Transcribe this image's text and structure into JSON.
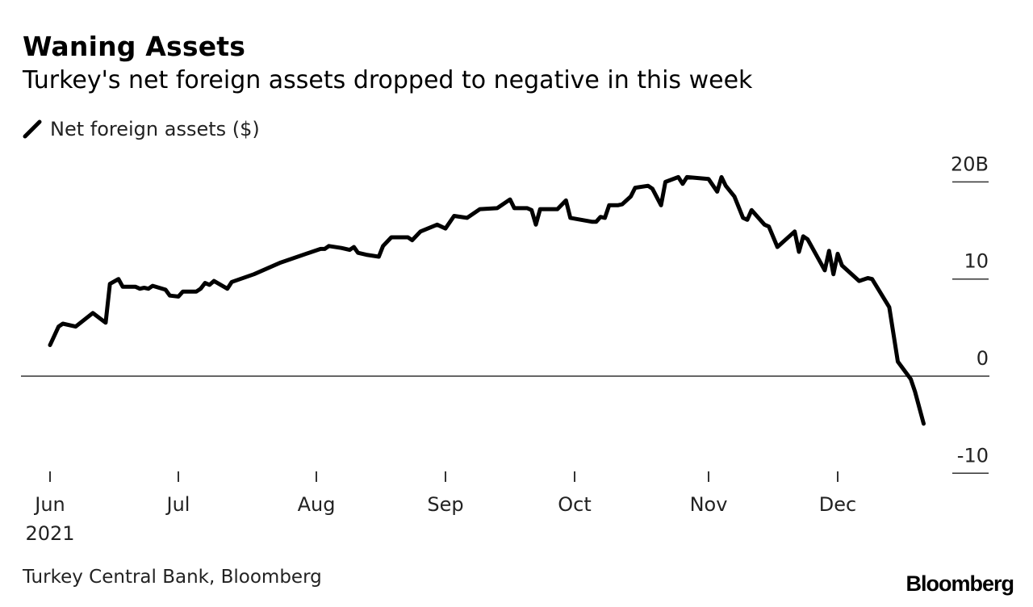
{
  "title": "Waning Assets",
  "subtitle": "Turkey's net foreign assets dropped to negative in this week",
  "source": "Turkey Central Bank, Bloomberg",
  "logo": "Bloomberg",
  "chart_data": {
    "type": "line",
    "title": "Waning Assets",
    "subtitle": "Turkey's net foreign assets dropped to negative in this week",
    "legend": "top-left",
    "grid": false,
    "line_color": "#000000",
    "xlim": [
      "2021-06-01",
      "2021-12-21"
    ],
    "ylim": [
      -10,
      20
    ],
    "x_ticks": [
      {
        "date": "2021-06-01",
        "label": "Jun",
        "sublabel": "2021"
      },
      {
        "date": "2021-07-01",
        "label": "Jul"
      },
      {
        "date": "2021-08-01",
        "label": "Aug"
      },
      {
        "date": "2021-09-01",
        "label": "Sep"
      },
      {
        "date": "2021-10-01",
        "label": "Oct"
      },
      {
        "date": "2021-11-01",
        "label": "Nov"
      },
      {
        "date": "2021-12-01",
        "label": "Dec"
      }
    ],
    "y_ticks": [
      {
        "value": 20,
        "label": "20B"
      },
      {
        "value": 10,
        "label": "10"
      },
      {
        "value": 0,
        "label": "0"
      },
      {
        "value": -10,
        "label": "-10"
      }
    ],
    "series": [
      {
        "name": "Net foreign assets ($)",
        "points": [
          [
            "2021-06-01",
            3.2
          ],
          [
            "2021-06-03",
            5.1
          ],
          [
            "2021-06-04",
            5.4
          ],
          [
            "2021-06-07",
            5.1
          ],
          [
            "2021-06-11",
            6.5
          ],
          [
            "2021-06-14",
            5.5
          ],
          [
            "2021-06-15",
            9.5
          ],
          [
            "2021-06-17",
            10.0
          ],
          [
            "2021-06-18",
            9.2
          ],
          [
            "2021-06-21",
            9.2
          ],
          [
            "2021-06-22",
            9.0
          ],
          [
            "2021-06-23",
            9.1
          ],
          [
            "2021-06-24",
            9.0
          ],
          [
            "2021-06-25",
            9.3
          ],
          [
            "2021-06-28",
            8.9
          ],
          [
            "2021-06-29",
            8.3
          ],
          [
            "2021-07-01",
            8.2
          ],
          [
            "2021-07-02",
            8.7
          ],
          [
            "2021-07-05",
            8.7
          ],
          [
            "2021-07-06",
            9.0
          ],
          [
            "2021-07-07",
            9.6
          ],
          [
            "2021-07-08",
            9.4
          ],
          [
            "2021-07-09",
            9.8
          ],
          [
            "2021-07-12",
            9.0
          ],
          [
            "2021-07-13",
            9.7
          ],
          [
            "2021-07-18",
            10.5
          ],
          [
            "2021-07-24",
            11.7
          ],
          [
            "2021-07-31",
            12.8
          ],
          [
            "2021-08-02",
            13.1
          ],
          [
            "2021-08-03",
            13.1
          ],
          [
            "2021-08-04",
            13.4
          ],
          [
            "2021-08-07",
            13.2
          ],
          [
            "2021-08-09",
            13.0
          ],
          [
            "2021-08-10",
            13.3
          ],
          [
            "2021-08-11",
            12.7
          ],
          [
            "2021-08-13",
            12.5
          ],
          [
            "2021-08-16",
            12.3
          ],
          [
            "2021-08-17",
            13.4
          ],
          [
            "2021-08-19",
            14.3
          ],
          [
            "2021-08-23",
            14.3
          ],
          [
            "2021-08-24",
            14.0
          ],
          [
            "2021-08-26",
            14.9
          ],
          [
            "2021-08-30",
            15.6
          ],
          [
            "2021-09-01",
            15.2
          ],
          [
            "2021-09-03",
            16.5
          ],
          [
            "2021-09-06",
            16.3
          ],
          [
            "2021-09-09",
            17.2
          ],
          [
            "2021-09-13",
            17.3
          ],
          [
            "2021-09-16",
            18.2
          ],
          [
            "2021-09-17",
            17.3
          ],
          [
            "2021-09-20",
            17.3
          ],
          [
            "2021-09-21",
            17.1
          ],
          [
            "2021-09-22",
            15.6
          ],
          [
            "2021-09-23",
            17.2
          ],
          [
            "2021-09-27",
            17.2
          ],
          [
            "2021-09-29",
            18.1
          ],
          [
            "2021-09-30",
            16.3
          ],
          [
            "2021-10-05",
            15.9
          ],
          [
            "2021-10-06",
            15.9
          ],
          [
            "2021-10-07",
            16.4
          ],
          [
            "2021-10-08",
            16.3
          ],
          [
            "2021-10-09",
            17.6
          ],
          [
            "2021-10-11",
            17.6
          ],
          [
            "2021-10-12",
            17.7
          ],
          [
            "2021-10-14",
            18.5
          ],
          [
            "2021-10-15",
            19.4
          ],
          [
            "2021-10-18",
            19.6
          ],
          [
            "2021-10-19",
            19.3
          ],
          [
            "2021-10-21",
            17.6
          ],
          [
            "2021-10-22",
            20.0
          ],
          [
            "2021-10-25",
            20.5
          ],
          [
            "2021-10-26",
            19.8
          ],
          [
            "2021-10-27",
            20.5
          ],
          [
            "2021-11-01",
            20.3
          ],
          [
            "2021-11-03",
            19.0
          ],
          [
            "2021-11-04",
            20.5
          ],
          [
            "2021-11-05",
            19.6
          ],
          [
            "2021-11-07",
            18.5
          ],
          [
            "2021-11-09",
            16.3
          ],
          [
            "2021-11-10",
            16.1
          ],
          [
            "2021-11-11",
            17.1
          ],
          [
            "2021-11-14",
            15.6
          ],
          [
            "2021-11-15",
            15.4
          ],
          [
            "2021-11-17",
            13.3
          ],
          [
            "2021-11-21",
            14.9
          ],
          [
            "2021-11-22",
            12.8
          ],
          [
            "2021-11-23",
            14.4
          ],
          [
            "2021-11-24",
            14.1
          ],
          [
            "2021-11-28",
            10.9
          ],
          [
            "2021-11-29",
            12.9
          ],
          [
            "2021-11-30",
            10.5
          ],
          [
            "2021-12-01",
            12.6
          ],
          [
            "2021-12-02",
            11.4
          ],
          [
            "2021-12-06",
            9.8
          ],
          [
            "2021-12-08",
            10.1
          ],
          [
            "2021-12-09",
            10.0
          ],
          [
            "2021-12-13",
            7.1
          ],
          [
            "2021-12-15",
            1.5
          ],
          [
            "2021-12-18",
            -0.3
          ],
          [
            "2021-12-19",
            -1.6
          ],
          [
            "2021-12-21",
            -4.9
          ]
        ]
      }
    ]
  }
}
